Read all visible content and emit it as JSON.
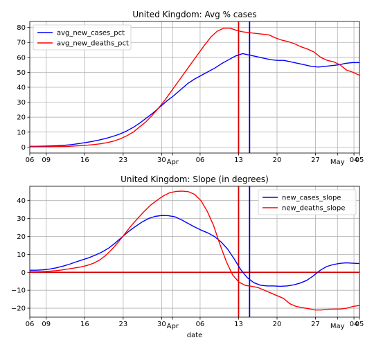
{
  "chart_data": [
    {
      "type": "line",
      "title": "United Kingdom: Avg % cases",
      "xlabel": "",
      "ylabel": "",
      "ylim": [
        -4,
        84
      ],
      "yticks": [
        0,
        10,
        20,
        30,
        40,
        50,
        60,
        70,
        80
      ],
      "grid": true,
      "legend_position": "top-left",
      "x_start": "2020-03-06",
      "x_end": "2020-05-05",
      "x_ticks": [
        {
          "date": "2020-03-06",
          "label": "06"
        },
        {
          "date": "2020-03-09",
          "label": "09"
        },
        {
          "date": "2020-03-16",
          "label": "16"
        },
        {
          "date": "2020-03-23",
          "label": "23"
        },
        {
          "date": "2020-03-30",
          "label": "30"
        },
        {
          "date": "2020-04-01",
          "label": "Apr"
        },
        {
          "date": "2020-04-06",
          "label": "06"
        },
        {
          "date": "2020-04-13",
          "label": "13"
        },
        {
          "date": "2020-04-20",
          "label": "20"
        },
        {
          "date": "2020-04-27",
          "label": "27"
        },
        {
          "date": "2020-05-01",
          "label": "May"
        },
        {
          "date": "2020-05-04",
          "label": "04"
        },
        {
          "date": "2020-05-05",
          "label": "05"
        }
      ],
      "hlines": [],
      "vlines": [
        {
          "date": "2020-04-13",
          "color": "#d40000"
        },
        {
          "date": "2020-04-15",
          "color": "#0000cc"
        }
      ],
      "series": [
        {
          "name": "avg_new_cases_pct",
          "color": "#0000ff",
          "values": [
            0.5,
            0.5,
            0.6,
            0.7,
            0.9,
            1.2,
            1.6,
            2.2,
            2.9,
            3.7,
            4.6,
            5.7,
            7.0,
            8.5,
            10.5,
            13.0,
            16.0,
            19.5,
            23.0,
            27.0,
            31.0,
            34.5,
            38.5,
            42.5,
            45.5,
            48.0,
            50.5,
            53.0,
            56.0,
            58.5,
            61.0,
            62.5,
            61.5,
            60.5,
            59.5,
            58.5,
            58.0,
            58.0,
            57.0,
            56.0,
            55.0,
            54.0,
            53.5,
            54.0,
            54.5,
            55.0,
            56.0,
            56.5,
            56.5
          ]
        },
        {
          "name": "avg_new_deaths_pct",
          "color": "#ff0000",
          "values": [
            0.2,
            0.2,
            0.2,
            0.2,
            0.3,
            0.4,
            0.5,
            0.7,
            1.0,
            1.3,
            1.7,
            2.2,
            3.0,
            4.0,
            5.5,
            7.5,
            10.0,
            13.5,
            17.0,
            21.5,
            26.5,
            32.0,
            38.0,
            44.0,
            50.0,
            56.0,
            62.0,
            68.0,
            73.5,
            77.5,
            79.5,
            79.5,
            78.0,
            77.0,
            76.5,
            76.0,
            75.5,
            75.0,
            73.0,
            71.5,
            70.5,
            69.0,
            67.0,
            65.5,
            63.5,
            60.0,
            58.0,
            57.0,
            55.0,
            51.5,
            50.0,
            48.0
          ]
        }
      ]
    },
    {
      "type": "line",
      "title": "United Kingdom: Slope (in degrees)",
      "xlabel": "date",
      "ylabel": "",
      "ylim": [
        -25,
        48
      ],
      "yticks": [
        -20,
        -10,
        0,
        10,
        20,
        30,
        40
      ],
      "grid": true,
      "legend_position": "top-right",
      "x_start": "2020-03-06",
      "x_end": "2020-05-05",
      "x_ticks": [
        {
          "date": "2020-03-06",
          "label": "06"
        },
        {
          "date": "2020-03-09",
          "label": "09"
        },
        {
          "date": "2020-03-16",
          "label": "16"
        },
        {
          "date": "2020-03-23",
          "label": "23"
        },
        {
          "date": "2020-03-30",
          "label": "30"
        },
        {
          "date": "2020-04-01",
          "label": "Apr"
        },
        {
          "date": "2020-04-06",
          "label": "06"
        },
        {
          "date": "2020-04-13",
          "label": "13"
        },
        {
          "date": "2020-04-20",
          "label": "20"
        },
        {
          "date": "2020-04-27",
          "label": "27"
        },
        {
          "date": "2020-05-01",
          "label": "May"
        },
        {
          "date": "2020-05-04",
          "label": "04"
        },
        {
          "date": "2020-05-05",
          "label": "05"
        }
      ],
      "hlines": [
        {
          "y": 0,
          "color": "#d40000"
        }
      ],
      "vlines": [
        {
          "date": "2020-04-13",
          "color": "#d40000"
        },
        {
          "date": "2020-04-15",
          "color": "#0000cc"
        }
      ],
      "series": [
        {
          "name": "new_cases_slope",
          "color": "#0000ff",
          "values": [
            1.2,
            1.2,
            1.4,
            1.8,
            2.5,
            3.4,
            4.5,
            5.8,
            7.0,
            8.2,
            9.7,
            11.4,
            13.6,
            16.5,
            19.7,
            22.8,
            25.5,
            28.0,
            30.0,
            31.2,
            31.7,
            31.6,
            31.0,
            29.3,
            27.3,
            25.3,
            23.5,
            22.0,
            20.0,
            17.0,
            13.0,
            7.5,
            1.5,
            -3.0,
            -5.8,
            -7.2,
            -7.6,
            -7.6,
            -7.8,
            -7.6,
            -7.0,
            -6.0,
            -4.5,
            -2.0,
            1.0,
            3.2,
            4.3,
            5.0,
            5.3,
            5.1,
            4.9
          ]
        },
        {
          "name": "new_deaths_slope",
          "color": "#ff0000",
          "values": [
            0.3,
            0.3,
            0.4,
            0.6,
            0.9,
            1.3,
            1.8,
            2.4,
            3.0,
            3.8,
            5.0,
            6.8,
            9.5,
            13.0,
            17.0,
            21.5,
            26.0,
            30.0,
            33.8,
            37.3,
            40.0,
            42.5,
            44.3,
            45.1,
            45.3,
            45.0,
            43.5,
            40.0,
            34.0,
            26.0,
            15.5,
            6.0,
            -1.5,
            -5.5,
            -7.3,
            -7.8,
            -8.5,
            -10.0,
            -11.5,
            -13.0,
            -14.5,
            -17.5,
            -19.0,
            -19.7,
            -20.3,
            -21.0,
            -21.0,
            -20.6,
            -20.5,
            -20.5,
            -20.0,
            -19.0,
            -18.5
          ]
        }
      ]
    }
  ]
}
